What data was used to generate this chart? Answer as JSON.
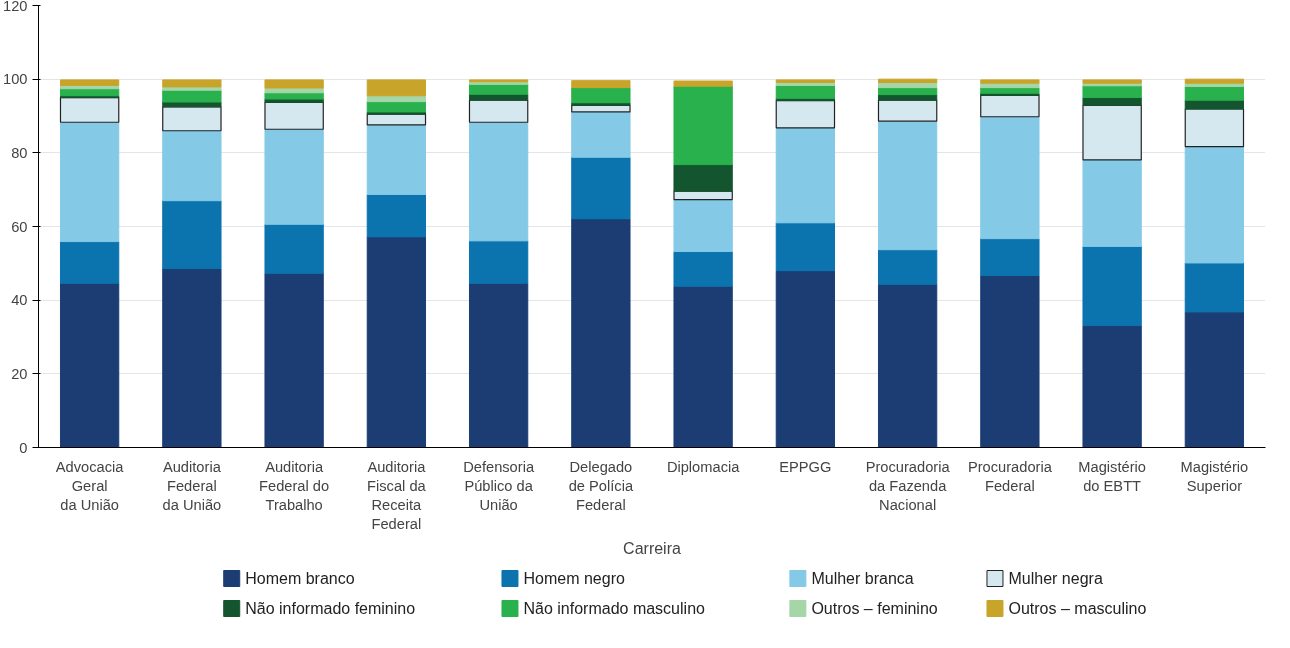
{
  "chart_data": {
    "type": "bar",
    "stacked": true,
    "xlabel": "Carreira",
    "categories": [
      "Advocacia\nGeral\nda União",
      "Auditoria\nFederal\nda União",
      "Auditoria\nFederal do\nTrabalho",
      "Auditoria\nFiscal da\nReceita\nFederal",
      "Defensoria\nPúblico da\nUnião",
      "Delegado\nde Polícia\nFederal",
      "Diplomacia",
      "EPPGG",
      "Procuradoria\nda Fazenda\nNacional",
      "Procuradoria\nFederal",
      "Magistério\ndo EBTT",
      "Magistério\nSuperior"
    ],
    "series": [
      {
        "name": "Homem branco",
        "color": "#1b3d73",
        "values": [
          44.6,
          48.6,
          47.3,
          57.2,
          44.6,
          62.1,
          43.8,
          48.0,
          44.3,
          46.7,
          33.1,
          36.8
        ]
      },
      {
        "name": "Homem negro",
        "color": "#0b73ae",
        "values": [
          11.3,
          18.4,
          13.3,
          11.5,
          11.5,
          16.7,
          9.4,
          13.0,
          9.4,
          10.0,
          21.5,
          13.3
        ]
      },
      {
        "name": "Mulher branca",
        "color": "#84c9e6",
        "values": [
          32.4,
          19.0,
          25.8,
          18.9,
          32.2,
          12.3,
          14.1,
          25.8,
          34.9,
          33.1,
          23.5,
          31.6
        ]
      },
      {
        "name": "Mulher negra",
        "color": "#d5e8f0",
        "values": [
          6.7,
          6.5,
          7.3,
          2.9,
          6.0,
          1.8,
          2.3,
          7.4,
          5.7,
          5.8,
          14.8,
          10.2
        ]
      },
      {
        "name": "Não informado feminino",
        "color": "#13552e",
        "values": [
          0.5,
          1.3,
          0.9,
          0.6,
          1.6,
          0.7,
          7.2,
          0.6,
          1.5,
          0.6,
          2.1,
          2.4
        ]
      },
      {
        "name": "Não informado masculino",
        "color": "#28b14c",
        "values": [
          1.9,
          3.2,
          1.7,
          2.8,
          2.7,
          4.1,
          21.3,
          3.5,
          1.9,
          1.5,
          3.2,
          3.7
        ]
      },
      {
        "name": "Outros – feminino",
        "color": "#a5d6a7",
        "values": [
          0.9,
          0.9,
          1.3,
          1.6,
          0.7,
          null,
          null,
          0.8,
          1.4,
          1.2,
          0.7,
          0.9
        ]
      },
      {
        "name": "Outros – masculino",
        "color": "#c9a42a",
        "values": [
          1.5,
          1.9,
          2.2,
          4.3,
          0.5,
          1.9,
          1.4,
          0.7,
          0.9,
          0.9,
          0.9,
          1.1
        ]
      }
    ],
    "ylim": [
      0,
      120
    ],
    "yticks": [
      0,
      20,
      40,
      60,
      80,
      100,
      120
    ],
    "grid": "y",
    "legend": "bottom"
  }
}
